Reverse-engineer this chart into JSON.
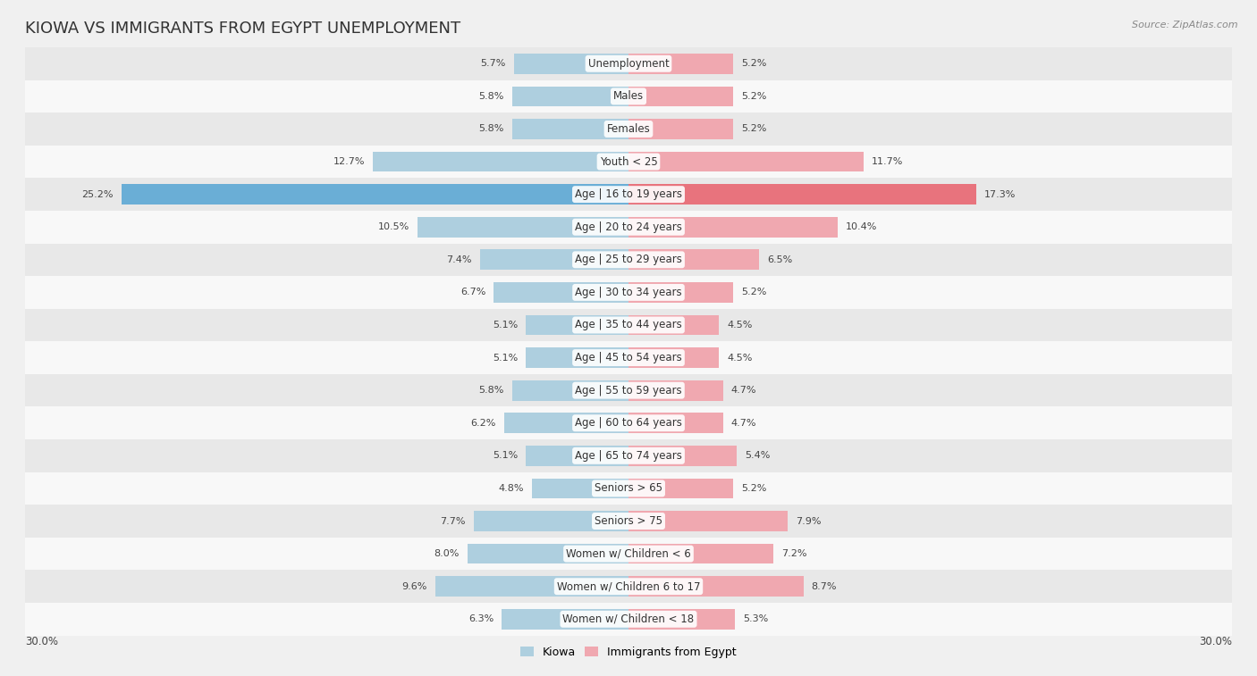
{
  "title": "KIOWA VS IMMIGRANTS FROM EGYPT UNEMPLOYMENT",
  "source": "Source: ZipAtlas.com",
  "categories": [
    "Unemployment",
    "Males",
    "Females",
    "Youth < 25",
    "Age | 16 to 19 years",
    "Age | 20 to 24 years",
    "Age | 25 to 29 years",
    "Age | 30 to 34 years",
    "Age | 35 to 44 years",
    "Age | 45 to 54 years",
    "Age | 55 to 59 years",
    "Age | 60 to 64 years",
    "Age | 65 to 74 years",
    "Seniors > 65",
    "Seniors > 75",
    "Women w/ Children < 6",
    "Women w/ Children 6 to 17",
    "Women w/ Children < 18"
  ],
  "kiowa_values": [
    5.7,
    5.8,
    5.8,
    12.7,
    25.2,
    10.5,
    7.4,
    6.7,
    5.1,
    5.1,
    5.8,
    6.2,
    5.1,
    4.8,
    7.7,
    8.0,
    9.6,
    6.3
  ],
  "egypt_values": [
    5.2,
    5.2,
    5.2,
    11.7,
    17.3,
    10.4,
    6.5,
    5.2,
    4.5,
    4.5,
    4.7,
    4.7,
    5.4,
    5.2,
    7.9,
    7.2,
    8.7,
    5.3
  ],
  "kiowa_color": "#aecfdf",
  "egypt_color": "#f0a8b0",
  "kiowa_color_highlight": "#6aaed6",
  "egypt_color_highlight": "#e8737d",
  "background_color": "#f0f0f0",
  "row_even_color": "#e8e8e8",
  "row_odd_color": "#f8f8f8",
  "xlim": 30.0,
  "bar_height": 0.62,
  "legend_kiowa": "Kiowa",
  "legend_egypt": "Immigrants from Egypt",
  "title_fontsize": 13,
  "label_fontsize": 8.5,
  "value_fontsize": 8.0,
  "source_fontsize": 8
}
